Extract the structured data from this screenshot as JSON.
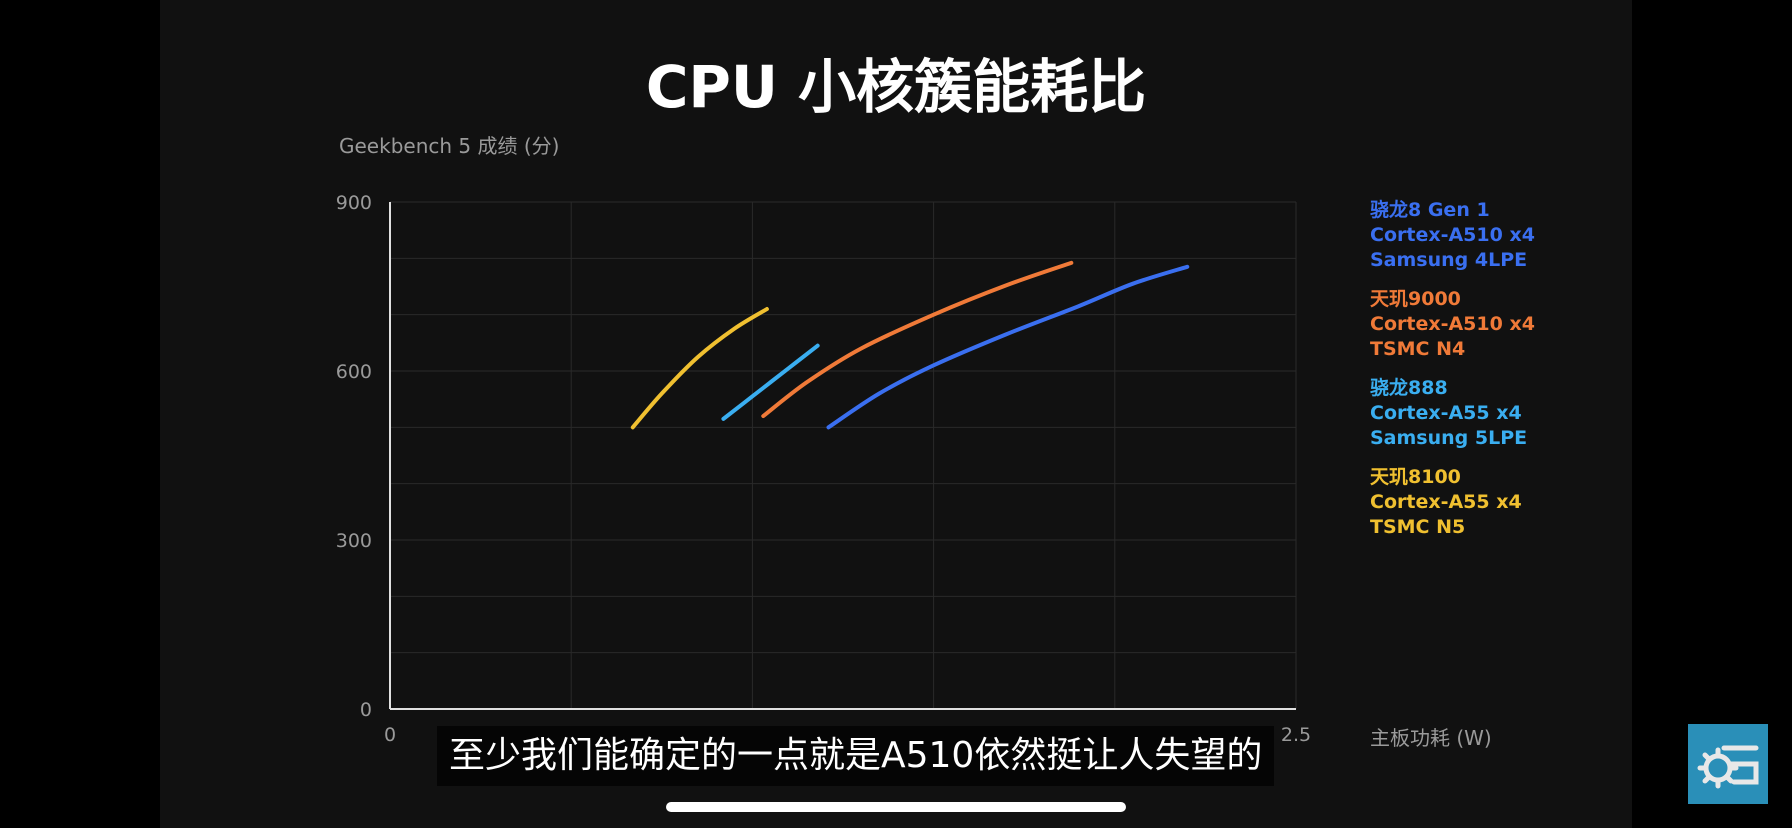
{
  "subtitle_text": "至少我们能确定的一点就是A510依然挺让人失望的",
  "logo": {
    "icon": "gear-g-logo-icon",
    "color": "#2a8fb8"
  },
  "chart_data": {
    "type": "line",
    "title": "CPU 小核簇能耗比",
    "xlabel": "主板功耗 (W)",
    "ylabel": "Geekbench 5 成绩 (分)",
    "xlim": [
      0,
      2.5
    ],
    "ylim": [
      0,
      900
    ],
    "xticks": [
      "0",
      "0.5",
      "1",
      "1.5",
      "2",
      "2.5"
    ],
    "yticks": [
      "0",
      "300",
      "600",
      "900"
    ],
    "grid": true,
    "legend_position": "right",
    "series": [
      {
        "name": "骁龙8 Gen 1",
        "legend_lines": [
          "骁龙8 Gen 1",
          "Cortex-A510 x4",
          "Samsung 4LPE"
        ],
        "color": "#3a6ff0",
        "points": [
          [
            1.21,
            500
          ],
          [
            1.35,
            560
          ],
          [
            1.5,
            610
          ],
          [
            1.7,
            665
          ],
          [
            1.9,
            715
          ],
          [
            2.05,
            755
          ],
          [
            2.2,
            785
          ]
        ]
      },
      {
        "name": "天玑9000",
        "legend_lines": [
          "天玑9000",
          "Cortex-A510 x4",
          "TSMC N4"
        ],
        "color": "#f07a38",
        "points": [
          [
            1.03,
            520
          ],
          [
            1.15,
            580
          ],
          [
            1.3,
            640
          ],
          [
            1.5,
            700
          ],
          [
            1.7,
            752
          ],
          [
            1.88,
            792
          ]
        ]
      },
      {
        "name": "骁龙888",
        "legend_lines": [
          "骁龙888",
          "Cortex-A55 x4",
          "Samsung 5LPE"
        ],
        "color": "#3aaef0",
        "points": [
          [
            0.92,
            515
          ],
          [
            1.0,
            555
          ],
          [
            1.1,
            605
          ],
          [
            1.18,
            645
          ]
        ]
      },
      {
        "name": "天玑8100",
        "legend_lines": [
          "天玑8100",
          "Cortex-A55 x4",
          "TSMC N5"
        ],
        "color": "#f0c030",
        "points": [
          [
            0.67,
            500
          ],
          [
            0.75,
            560
          ],
          [
            0.85,
            625
          ],
          [
            0.95,
            675
          ],
          [
            1.04,
            710
          ]
        ]
      }
    ]
  }
}
